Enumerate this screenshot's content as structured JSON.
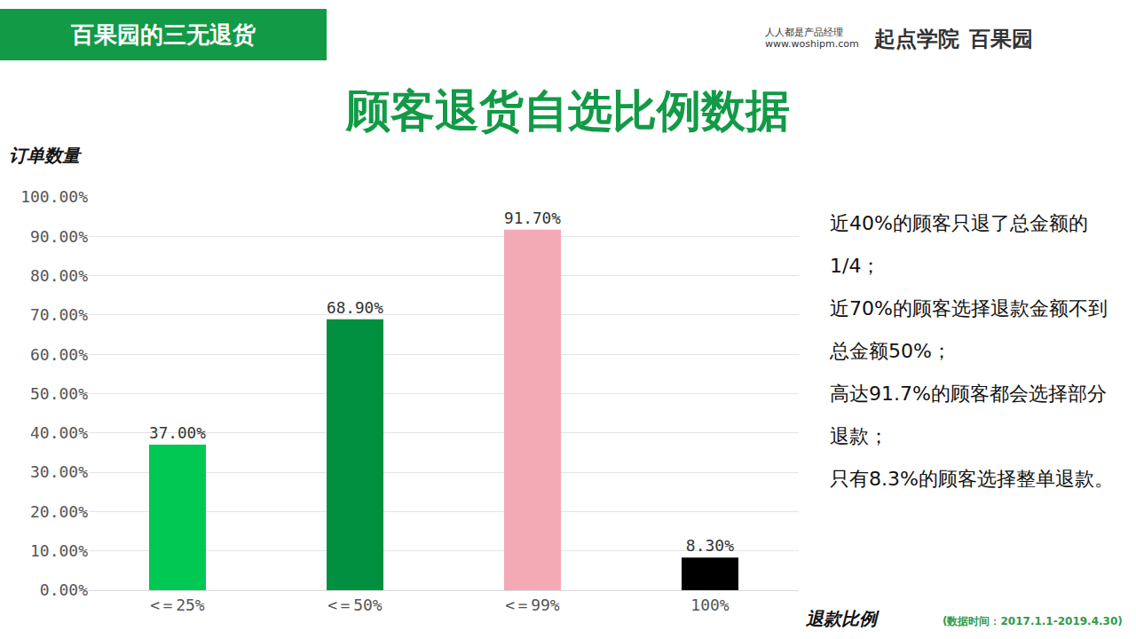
{
  "header": "百果园的三无退货",
  "logos": [
    "人人都是产品经理",
    "www.woshipm.com",
    "起点学院",
    "百果园"
  ],
  "chart_data": {
    "type": "bar",
    "title": "顾客退货自选比例数据",
    "y_label": "订单数量",
    "x_label": "退款比例",
    "categories": [
      "<＝25%",
      "<＝50%",
      "<＝99%",
      "100%"
    ],
    "values": [
      37,
      68.9,
      91.7,
      8.3
    ],
    "value_labels": [
      "37.00%",
      "68.90%",
      "91.70%",
      "8.30%"
    ],
    "colors": [
      "#00c853",
      "#00903f",
      "#f4aab5",
      "#000000"
    ],
    "data_labels": true,
    "ylim": [
      0,
      100
    ],
    "yticks": [
      {
        "value": 0,
        "label": "0.00%"
      },
      {
        "value": 10,
        "label": "10.00%"
      },
      {
        "value": 20,
        "label": "20.00%"
      },
      {
        "value": 30,
        "label": "30.00%"
      },
      {
        "value": 40,
        "label": "40.00%"
      },
      {
        "value": 50,
        "label": "50.00%"
      },
      {
        "value": 60,
        "label": "60.00%"
      },
      {
        "value": 70,
        "label": "70.00%"
      },
      {
        "value": 80,
        "label": "80.00%"
      },
      {
        "value": 90,
        "label": "90.00%"
      },
      {
        "value": 100,
        "label": "100.00%"
      }
    ],
    "grid": true,
    "annotations": [
      "近40%的顾客只退了总金额的1/4；",
      "近70%的顾客选择退款金额不到总金额50%；",
      "高达91.7%的顾客都会选择部分退款；",
      "只有8.3%的顾客选择整单退款。"
    ],
    "source": "(数据时间：2017.1.1-2019.4.30)"
  }
}
